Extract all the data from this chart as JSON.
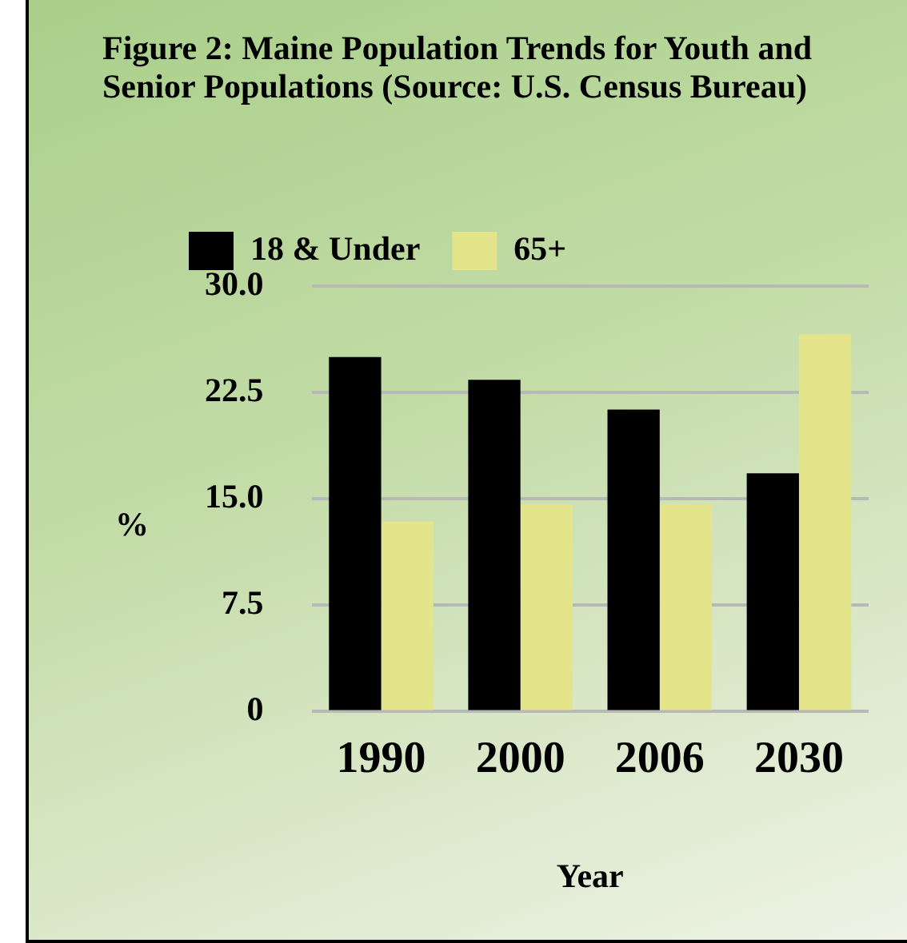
{
  "chart_data": {
    "type": "bar",
    "title": "Figure 2: Maine Population Trends for Youth and Senior Populations (Source: U.S. Census Bureau)",
    "xlabel": "Year",
    "ylabel": "%",
    "categories": [
      "1990",
      "2000",
      "2006",
      "2030"
    ],
    "series": [
      {
        "name": "18 & Under",
        "color": "#000000",
        "values": [
          25.0,
          23.4,
          21.3,
          16.8
        ]
      },
      {
        "name": "65+",
        "color": "#e4e48a",
        "values": [
          13.4,
          14.6,
          14.6,
          26.6
        ]
      }
    ],
    "ylim": [
      0,
      30
    ],
    "yticks": [
      {
        "value": 0,
        "label": "0"
      },
      {
        "value": 7.5,
        "label": "7.5"
      },
      {
        "value": 15,
        "label": "15.0"
      },
      {
        "value": 22.5,
        "label": "22.5"
      },
      {
        "value": 30,
        "label": "30.0"
      }
    ],
    "grid": "y",
    "legend": "top left"
  }
}
